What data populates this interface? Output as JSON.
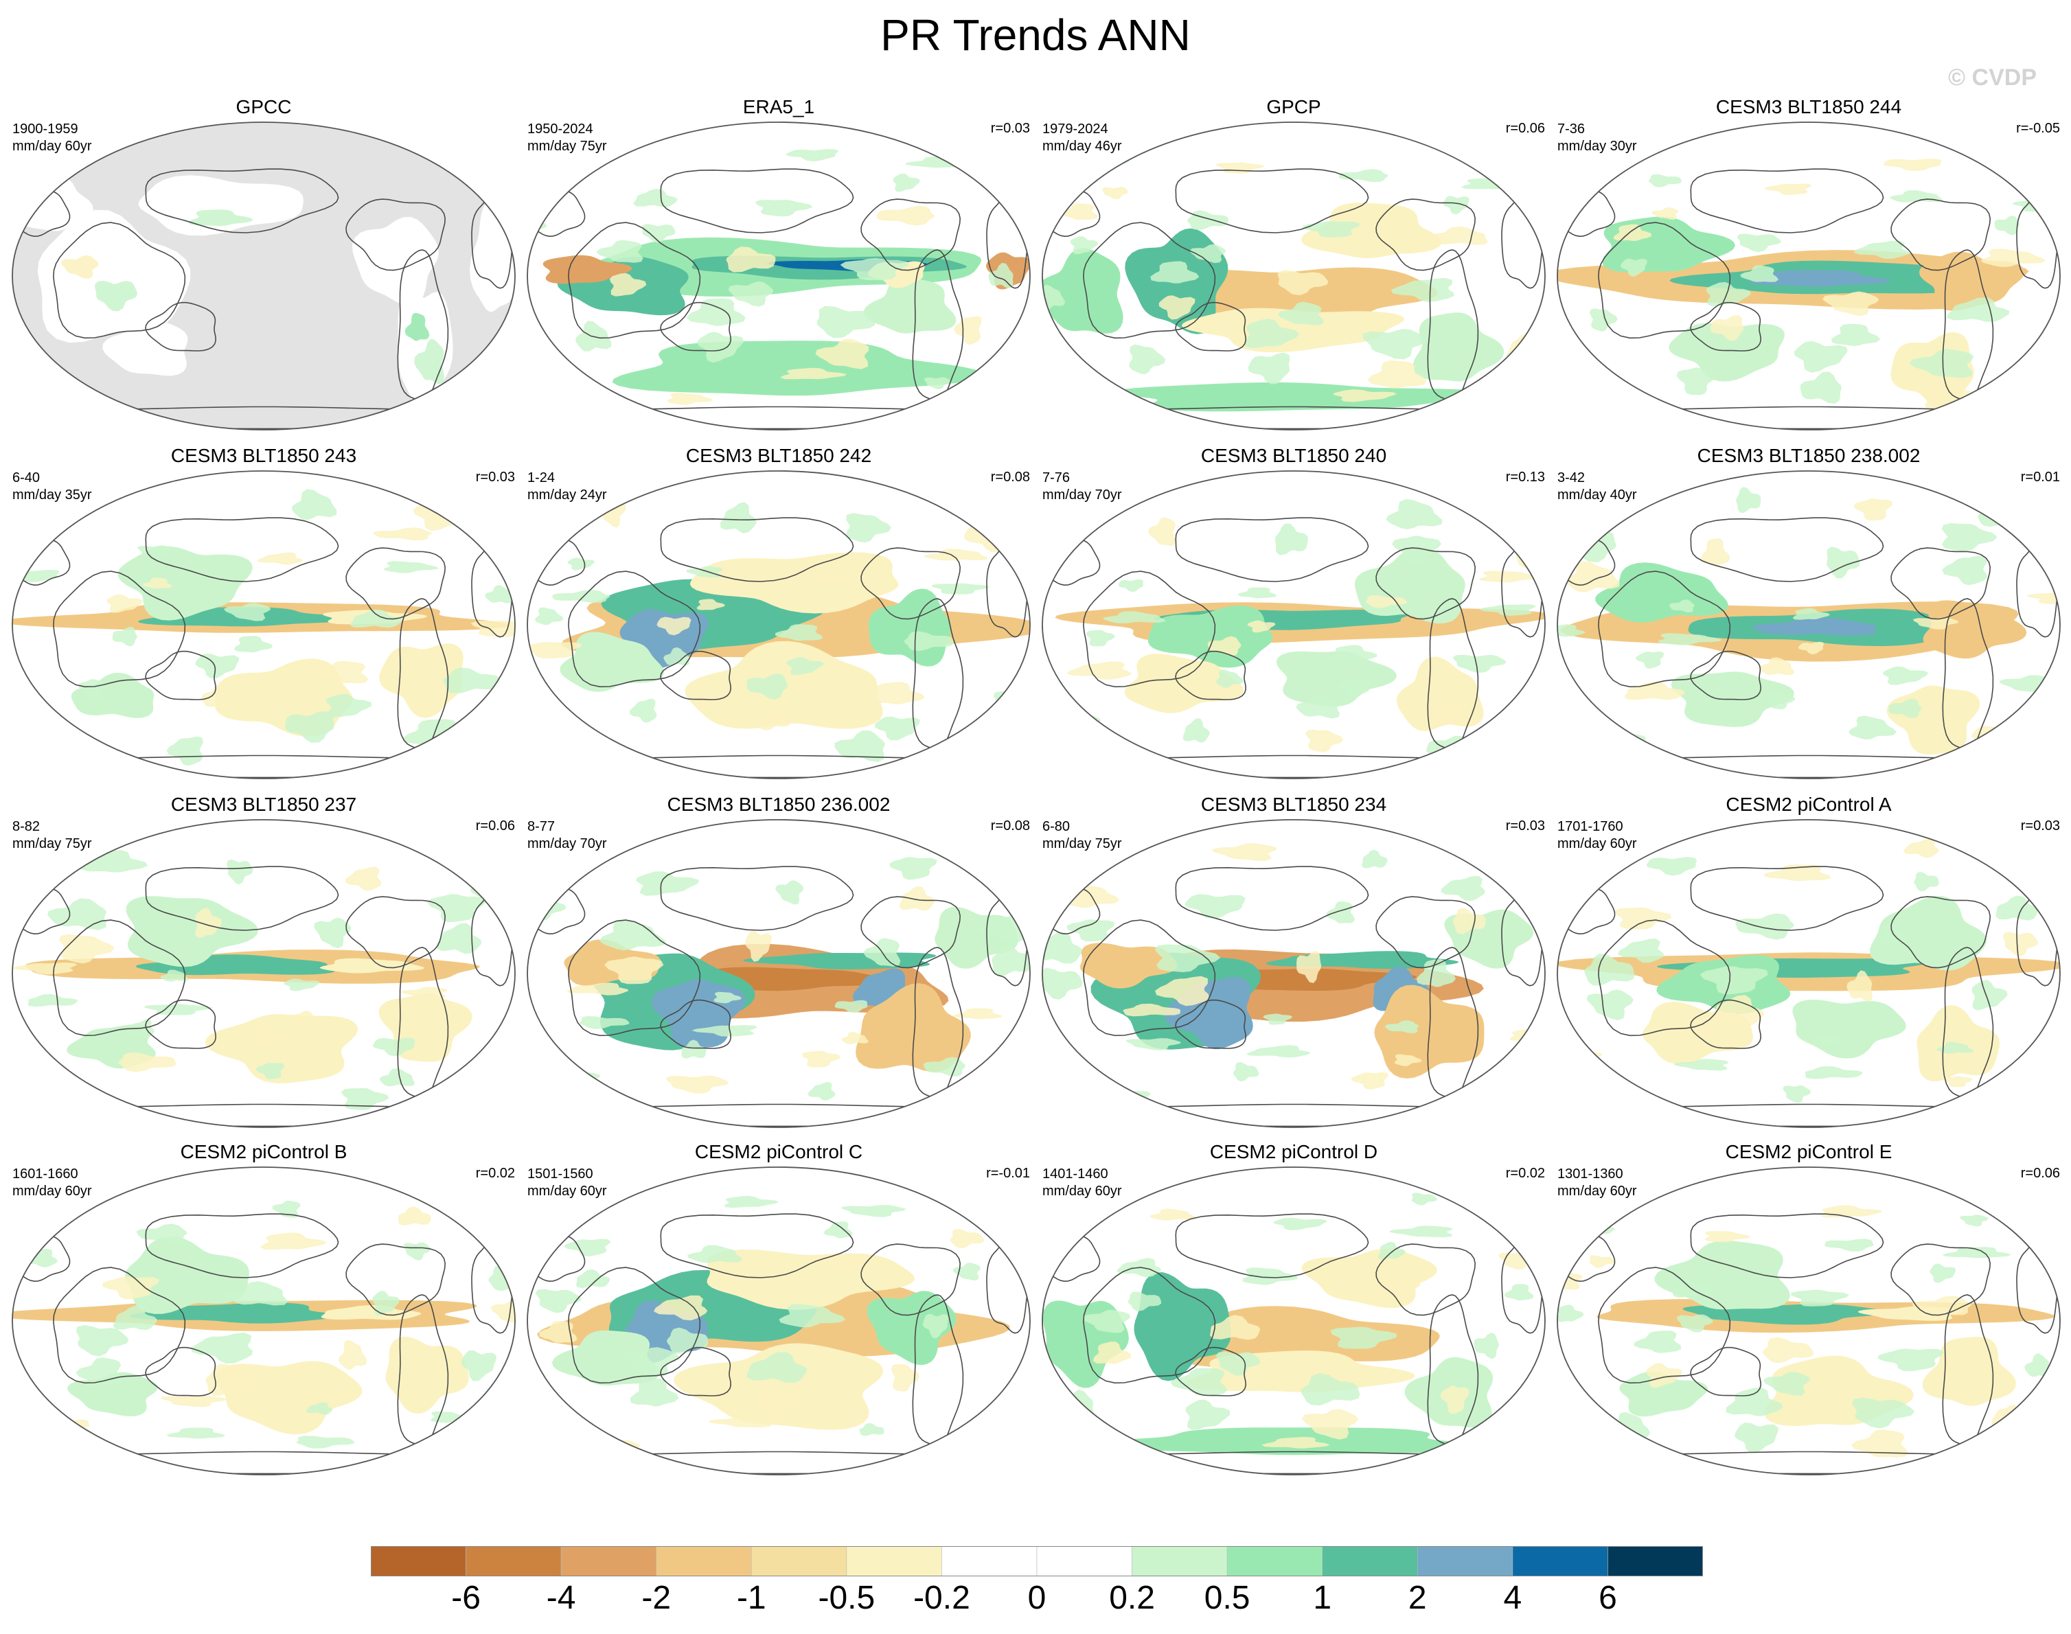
{
  "title": "PR Trends ANN",
  "watermark": "© CVDP",
  "panels": [
    {
      "title": "GPCC",
      "period": "1900-1959",
      "units": "mm/day 60yr",
      "r": "",
      "mode": "land"
    },
    {
      "title": "ERA5_1",
      "period": "1950-2024",
      "units": "mm/day 75yr",
      "r": "r=0.03",
      "mode": "A"
    },
    {
      "title": "GPCP",
      "period": "1979-2024",
      "units": "mm/day 46yr",
      "r": "r=0.06",
      "mode": "B"
    },
    {
      "title": "CESM3 BLT1850 244",
      "period": "7-36",
      "units": "mm/day 30yr",
      "r": "r=-0.05",
      "mode": "C"
    },
    {
      "title": "CESM3 BLT1850 243",
      "period": "6-40",
      "units": "mm/day 35yr",
      "r": "r=0.03",
      "mode": "D"
    },
    {
      "title": "CESM3 BLT1850 242",
      "period": "1-24",
      "units": "mm/day 24yr",
      "r": "r=0.08",
      "mode": "E"
    },
    {
      "title": "CESM3 BLT1850 240",
      "period": "7-76",
      "units": "mm/day 70yr",
      "r": "r=0.13",
      "mode": "F"
    },
    {
      "title": "CESM3 BLT1850 238.002",
      "period": "3-42",
      "units": "mm/day 40yr",
      "r": "r=0.01",
      "mode": "C"
    },
    {
      "title": "CESM3 BLT1850 237",
      "period": "8-82",
      "units": "mm/day 75yr",
      "r": "r=0.06",
      "mode": "D"
    },
    {
      "title": "CESM3 BLT1850 236.002",
      "period": "8-77",
      "units": "mm/day 70yr",
      "r": "r=0.08",
      "mode": "G"
    },
    {
      "title": "CESM3 BLT1850 234",
      "period": "6-80",
      "units": "mm/day 75yr",
      "r": "r=0.03",
      "mode": "G"
    },
    {
      "title": "CESM2 piControl A",
      "period": "1701-1760",
      "units": "mm/day 60yr",
      "r": "r=0.03",
      "mode": "F"
    },
    {
      "title": "CESM2 piControl B",
      "period": "1601-1660",
      "units": "mm/day 60yr",
      "r": "r=0.02",
      "mode": "D"
    },
    {
      "title": "CESM2 piControl C",
      "period": "1501-1560",
      "units": "mm/day 60yr",
      "r": "r=-0.01",
      "mode": "E"
    },
    {
      "title": "CESM2 piControl D",
      "period": "1401-1460",
      "units": "mm/day 60yr",
      "r": "r=0.02",
      "mode": "B"
    },
    {
      "title": "CESM2 piControl E",
      "period": "1301-1360",
      "units": "mm/day 60yr",
      "r": "r=0.06",
      "mode": "D"
    }
  ],
  "colorbar": {
    "colors": [
      "#b5652a",
      "#cc8340",
      "#dfa264",
      "#f1c883",
      "#f5dfa0",
      "#fbf2c1",
      "#ffffff",
      "#ffffff",
      "#cbf4cd",
      "#9ae8b1",
      "#58bf9c",
      "#75a8c6",
      "#0b6aa6",
      "#023858"
    ],
    "labels": [
      "-6",
      "-4",
      "-2",
      "-1",
      "-0.5",
      "-0.2",
      "0",
      "0.2",
      "0.5",
      "1",
      "2",
      "4",
      "6"
    ]
  }
}
